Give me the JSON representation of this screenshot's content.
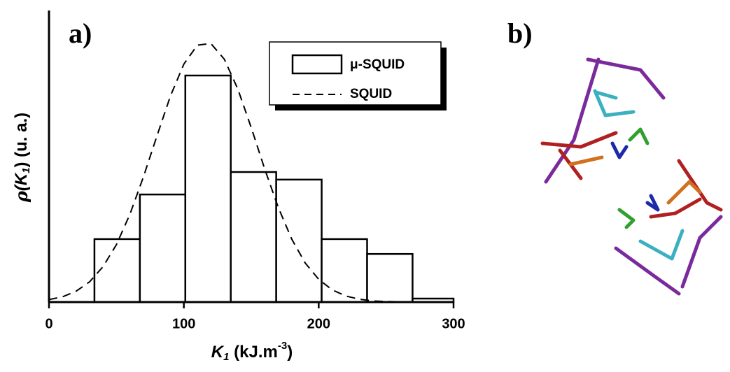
{
  "panels": [
    "a)",
    "b)"
  ],
  "chart_data": {
    "type": "histogram",
    "x_label": [
      "K",
      "1",
      " (kJ.m",
      "-3",
      ")"
    ],
    "y_label": [
      "ρ",
      "(K",
      "1",
      ") (u. a.)"
    ],
    "bins": [
      33.7,
      67.4,
      101.1,
      134.8,
      168.5,
      202.2,
      235.9,
      269.6,
      300
    ],
    "values": [
      21.6,
      36.9,
      77.7,
      44.6,
      42.0,
      21.6,
      16.5,
      1.2
    ],
    "name": "μ-SQUID",
    "curve": {
      "name": "SQUID",
      "x": [
        0,
        10,
        20,
        30,
        40,
        50,
        60,
        70,
        80,
        90,
        100,
        110,
        120,
        130,
        140,
        150,
        160,
        170,
        180,
        190,
        200,
        210,
        220,
        230,
        240,
        250,
        260
      ],
      "values": [
        0.85,
        1.8,
        3.7,
        6.9,
        12.1,
        19.7,
        30.1,
        42.9,
        56.9,
        70.6,
        81.6,
        88.1,
        88.7,
        83.3,
        73.1,
        59.8,
        45.6,
        32.5,
        21.6,
        13.4,
        7.8,
        4.2,
        2.1,
        1.0,
        0.4,
        0.2,
        0.1
      ]
    },
    "xlim": [
      0,
      300
    ],
    "xticks": [
      0,
      100,
      200,
      300
    ],
    "ylim": [
      0,
      100
    ],
    "color": "#000000"
  }
}
